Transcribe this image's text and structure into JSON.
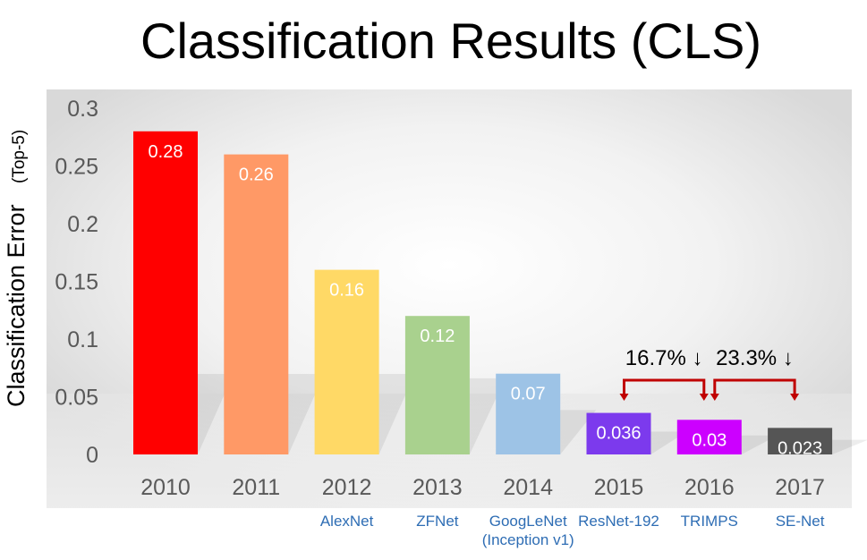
{
  "chart_data": {
    "type": "bar",
    "title": "Classification Results (CLS)",
    "ylabel": "Classification Error",
    "ylabel_sub": "(Top-5)",
    "xlabel": "",
    "ylim": [
      0,
      0.3
    ],
    "yticks": [
      {
        "value": 0,
        "label": "0"
      },
      {
        "value": 0.05,
        "label": "0.05"
      },
      {
        "value": 0.1,
        "label": "0.1"
      },
      {
        "value": 0.15,
        "label": "0.15"
      },
      {
        "value": 0.2,
        "label": "0.2"
      },
      {
        "value": 0.25,
        "label": "0.25"
      },
      {
        "value": 0.3,
        "label": "0.3"
      }
    ],
    "categories": [
      "2010",
      "2011",
      "2012",
      "2013",
      "2014",
      "2015",
      "2016",
      "2017"
    ],
    "values": [
      0.28,
      0.26,
      0.16,
      0.12,
      0.07,
      0.036,
      0.03,
      0.023
    ],
    "value_labels": [
      "0.28",
      "0.26",
      "0.16",
      "0.12",
      "0.07",
      "0.036",
      "0.03",
      "0.023"
    ],
    "model_names": [
      "",
      "",
      "AlexNet",
      "ZFNet",
      "GoogLeNet\n(Inception v1)",
      "ResNet-192",
      "TRIMPS",
      "SE-Net"
    ],
    "colors": [
      "#ff0000",
      "#ff9966",
      "#ffd966",
      "#a9d18e",
      "#9dc3e6",
      "#7c3aed",
      "#cc00ff",
      "#555555"
    ],
    "grid": false,
    "annotations": [
      {
        "text": "16.7% ↓",
        "from_index": 5,
        "to_index": 6
      },
      {
        "text": "23.3% ↓",
        "from_index": 6,
        "to_index": 7
      }
    ],
    "annotation_color": "#c00000",
    "model_label_color": "#2e6db4"
  }
}
